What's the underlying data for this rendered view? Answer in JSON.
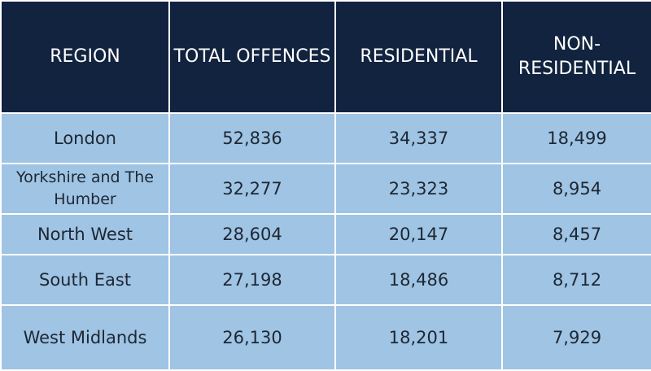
{
  "chart_data": {
    "type": "table",
    "columns": [
      "REGION",
      "TOTAL OFFENCES",
      "RESIDENTIAL",
      "NON-RESIDENTIAL"
    ],
    "rows": [
      {
        "region": "London",
        "total": "52,836",
        "residential": "34,337",
        "non_residential": "18,499"
      },
      {
        "region": "Yorkshire and The Humber",
        "total": "32,277",
        "residential": "23,323",
        "non_residential": "8,954"
      },
      {
        "region": "North West",
        "total": "28,604",
        "residential": "20,147",
        "non_residential": "8,457"
      },
      {
        "region": "South East",
        "total": "27,198",
        "residential": "18,486",
        "non_residential": "8,712"
      },
      {
        "region": "West Midlands",
        "total": "26,130",
        "residential": "18,201",
        "non_residential": "7,929"
      }
    ]
  },
  "colors": {
    "header_bg": "#12233f",
    "body_bg": "#9fc4e4",
    "header_text": "#ffffff",
    "body_text": "#1e2733"
  }
}
